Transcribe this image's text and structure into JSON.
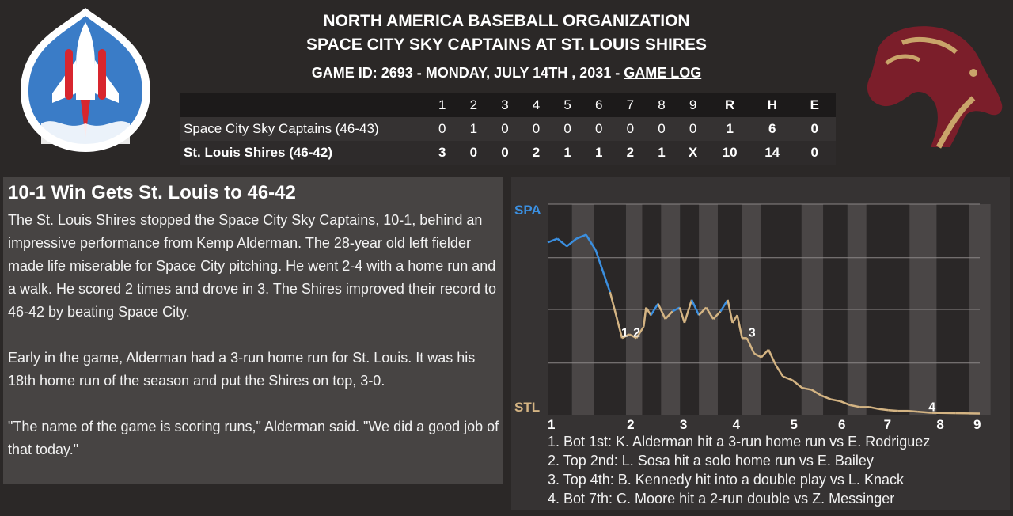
{
  "header": {
    "org": "NORTH AMERICA BASEBALL ORGANIZATION",
    "matchup": "SPACE CITY SKY CAPTAINS AT ST. LOUIS SHIRES",
    "game_info": "GAME ID: 2693 - MONDAY, JULY 14TH , 2031 - ",
    "game_log_link": "GAME LOG"
  },
  "linescore": {
    "columns": [
      "1",
      "2",
      "3",
      "4",
      "5",
      "6",
      "7",
      "8",
      "9",
      "R",
      "H",
      "E"
    ],
    "rows": [
      {
        "team": "Space City Sky Captains (46-43)",
        "innings": [
          "0",
          "1",
          "0",
          "0",
          "0",
          "0",
          "0",
          "0",
          "0"
        ],
        "r": "1",
        "h": "6",
        "e": "0"
      },
      {
        "team": "St. Louis Shires (46-42)",
        "innings": [
          "3",
          "0",
          "0",
          "2",
          "1",
          "1",
          "2",
          "1",
          "X"
        ],
        "r": "10",
        "h": "14",
        "e": "0"
      }
    ]
  },
  "story": {
    "headline": "10-1 Win Gets St. Louis to 46-42",
    "p1_a": "The ",
    "p1_link1": "St. Louis Shires",
    "p1_b": " stopped the ",
    "p1_link2": "Space City Sky Captains",
    "p1_c": ", 10-1, behind an impressive performance from ",
    "p1_link3": "Kemp Alderman",
    "p1_d": ". The 28-year old left fielder made life miserable for Space City pitching. He went 2-4 with a home run and a walk. He scored 2 times and drove in 3. The Shires improved their record to 46-42 by beating Space City.",
    "p2": "Early in the game, Alderman had a 3-run home run for St. Louis. It was his 18th home run of the season and put the Shires on top, 3-0.",
    "p3": "\"The name of the game is scoring runs,\" Alderman said. \"We did a good job of that today.\""
  },
  "chart_data": {
    "type": "line",
    "y_top_label": "SPA",
    "y_bottom_label": "STL",
    "x_tick_labels": [
      "1",
      "2",
      "3",
      "4",
      "5",
      "6",
      "7",
      "8",
      "9"
    ],
    "ylim": [
      0,
      1
    ],
    "colors": {
      "spa": "#3b8fe0",
      "stl": "#d4b483"
    },
    "series": [
      {
        "x": [
          0.0,
          0.2,
          0.4,
          0.6,
          0.8,
          1.0,
          1.3,
          1.55,
          1.7,
          1.85,
          2.0,
          2.05,
          2.15,
          2.3,
          2.45,
          2.6,
          2.75,
          2.85,
          3.0,
          3.15,
          3.3,
          3.45,
          3.6,
          3.75,
          3.85,
          3.95,
          4.05,
          4.15,
          4.3,
          4.45,
          4.6,
          4.75,
          4.9,
          5.1,
          5.3,
          5.5,
          5.7,
          5.9,
          6.1,
          6.3,
          6.5,
          6.7,
          6.9,
          7.1,
          7.3,
          7.5,
          7.7,
          8.0,
          8.5,
          9.0
        ],
        "values": [
          0.45,
          0.46,
          0.44,
          0.46,
          0.47,
          0.43,
          0.32,
          0.2,
          0.21,
          0.2,
          0.23,
          0.28,
          0.26,
          0.29,
          0.25,
          0.27,
          0.28,
          0.24,
          0.3,
          0.26,
          0.28,
          0.25,
          0.27,
          0.3,
          0.24,
          0.26,
          0.2,
          0.2,
          0.16,
          0.15,
          0.17,
          0.13,
          0.1,
          0.09,
          0.07,
          0.065,
          0.05,
          0.04,
          0.035,
          0.025,
          0.02,
          0.02,
          0.015,
          0.012,
          0.01,
          0.01,
          0.008,
          0.005,
          0.004,
          0.003
        ]
      }
    ],
    "annotation_labels": [
      "1",
      "2",
      "3",
      "4"
    ],
    "annotations": [
      {
        "label": "1",
        "x": 1.5
      },
      {
        "label": "2",
        "x": 1.75
      },
      {
        "label": "3",
        "x": 4.15
      },
      {
        "label": "4",
        "x": 7.9
      }
    ],
    "events": [
      "1. Bot 1st: K. Alderman hit a 3-run home run vs E. Rodriguez",
      "2. Top 2nd: L. Sosa hit a solo home run vs E. Bailey",
      "3. Top 4th: B. Kennedy hit into a double play vs L. Knack",
      "4. Bot 7th: C. Moore hit a 2-run double vs Z. Messinger"
    ]
  }
}
